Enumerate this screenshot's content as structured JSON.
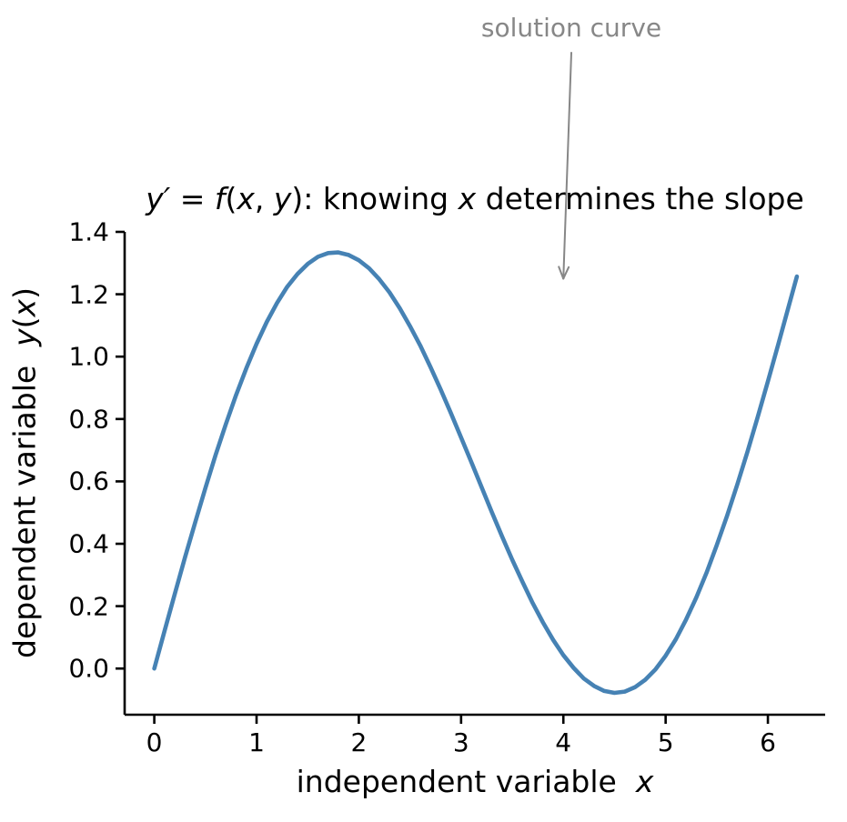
{
  "title_parts": [
    {
      "t": "y′ = ",
      "i": true
    },
    {
      "t": "f",
      "i": true
    },
    {
      "t": "(",
      "i": false
    },
    {
      "t": "x",
      "i": true
    },
    {
      "t": ", ",
      "i": false
    },
    {
      "t": "y",
      "i": true
    },
    {
      "t": "): knowing ",
      "i": false
    },
    {
      "t": "x",
      "i": true
    },
    {
      "t": " determines the slope",
      "i": false
    }
  ],
  "xlabel_parts": [
    {
      "t": "independent variable  ",
      "i": false
    },
    {
      "t": "x",
      "i": true
    }
  ],
  "ylabel_parts": [
    {
      "t": "dependent variable  ",
      "i": false
    },
    {
      "t": "y",
      "i": true
    },
    {
      "t": "(",
      "i": false
    },
    {
      "t": "x",
      "i": true
    },
    {
      "t": ")",
      "i": false
    }
  ],
  "chart_data": {
    "type": "line",
    "title": "y′ = f(x, y): knowing x determines the slope",
    "xlabel": "independent variable x",
    "ylabel": "dependent variable y(x)",
    "annotation": {
      "label": "solution curve",
      "xy": [
        4.0,
        1.25
      ]
    },
    "xlim": [
      -0.29,
      6.56
    ],
    "ylim": [
      -0.148,
      1.4
    ],
    "x_ticks": [
      0,
      1,
      2,
      3,
      4,
      5,
      6
    ],
    "x_tick_labels": [
      "0",
      "1",
      "2",
      "3",
      "4",
      "5",
      "6"
    ],
    "y_ticks": [
      0.0,
      0.2,
      0.4,
      0.6,
      0.8,
      1.0,
      1.2,
      1.4
    ],
    "y_tick_labels": [
      "0.0",
      "0.2",
      "0.4",
      "0.6",
      "0.8",
      "1.0",
      "1.2",
      "1.4"
    ],
    "grid": false,
    "legend": null,
    "colors": {
      "curve": "#4682b4",
      "axis": "#000000",
      "text": "#000000",
      "annotation": "#878787"
    },
    "series": [
      {
        "name": "solution curve",
        "x": [
          0,
          0.1,
          0.2,
          0.3,
          0.4,
          0.5,
          0.6,
          0.7,
          0.8,
          0.9,
          1,
          1.1,
          1.2,
          1.3,
          1.4,
          1.5,
          1.6,
          1.7,
          1.8,
          1.9,
          2,
          2.1,
          2.2,
          2.3,
          2.4,
          2.5,
          2.6,
          2.7,
          2.8,
          2.9,
          3,
          3.1,
          3.2,
          3.3,
          3.4,
          3.5,
          3.6,
          3.7,
          3.8,
          3.9,
          4,
          4.1,
          4.2,
          4.3,
          4.4,
          4.5,
          4.6,
          4.7,
          4.8,
          4.9,
          5,
          5.1,
          5.2,
          5.3,
          5.4,
          5.5,
          5.6,
          5.7,
          5.8,
          5.9,
          6,
          6.1,
          6.2,
          6.283
        ],
        "y": [
          0,
          0.12,
          0.239,
          0.356,
          0.469,
          0.579,
          0.685,
          0.784,
          0.877,
          0.963,
          1.041,
          1.111,
          1.172,
          1.224,
          1.265,
          1.297,
          1.32,
          1.332,
          1.334,
          1.326,
          1.309,
          1.283,
          1.248,
          1.206,
          1.155,
          1.098,
          1.036,
          0.967,
          0.895,
          0.819,
          0.741,
          0.662,
          0.582,
          0.502,
          0.424,
          0.349,
          0.278,
          0.21,
          0.148,
          0.092,
          0.043,
          0.002,
          -0.032,
          -0.056,
          -0.072,
          -0.078,
          -0.074,
          -0.06,
          -0.036,
          -0.003,
          0.041,
          0.094,
          0.157,
          0.228,
          0.307,
          0.395,
          0.489,
          0.589,
          0.695,
          0.806,
          0.921,
          1.038,
          1.157,
          1.257
        ]
      }
    ]
  }
}
